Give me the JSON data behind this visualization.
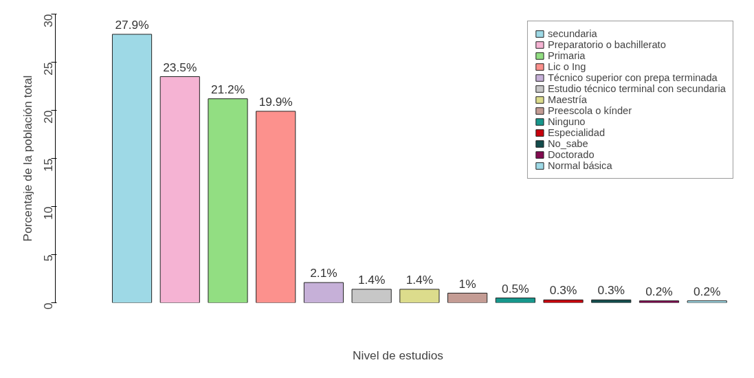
{
  "chart_data": {
    "type": "bar",
    "xlabel": "Nivel de estudios",
    "ylabel": "Porcentaje de la población total",
    "categories": [
      null,
      null,
      null,
      null,
      null,
      null,
      null,
      null,
      null,
      null,
      null,
      null,
      null
    ],
    "series": [
      {
        "name": "secundaria",
        "color": "#9ed9e6",
        "values": [
          27.9,
          null,
          null,
          null,
          null,
          null,
          null,
          null,
          null,
          null,
          null,
          null,
          null
        ],
        "value_labels": [
          "27.9%",
          null,
          null,
          null,
          null,
          null,
          null,
          null,
          null,
          null,
          null,
          null,
          null
        ]
      },
      {
        "name": "Preparatorio o bachillerato",
        "color": "#f5b3d3",
        "values": [
          null,
          23.5,
          null,
          null,
          null,
          null,
          null,
          null,
          null,
          null,
          null,
          null,
          null
        ],
        "value_labels": [
          null,
          "23.5%",
          null,
          null,
          null,
          null,
          null,
          null,
          null,
          null,
          null,
          null,
          null
        ]
      },
      {
        "name": "Primaria",
        "color": "#92de82",
        "values": [
          null,
          null,
          21.2,
          null,
          null,
          null,
          null,
          null,
          null,
          null,
          null,
          null,
          null
        ],
        "value_labels": [
          null,
          null,
          "21.2%",
          null,
          null,
          null,
          null,
          null,
          null,
          null,
          null,
          null,
          null
        ]
      },
      {
        "name": "Lic o Ing",
        "color": "#fc918d",
        "values": [
          null,
          null,
          null,
          19.9,
          null,
          null,
          null,
          null,
          null,
          null,
          null,
          null,
          null
        ],
        "value_labels": [
          null,
          null,
          null,
          "19.9%",
          null,
          null,
          null,
          null,
          null,
          null,
          null,
          null,
          null
        ]
      },
      {
        "name": "Técnico superior con prepa terminada",
        "color": "#c6b0d8",
        "values": [
          null,
          null,
          null,
          null,
          2.1,
          null,
          null,
          null,
          null,
          null,
          null,
          null,
          null
        ],
        "value_labels": [
          null,
          null,
          null,
          null,
          "2.1%",
          null,
          null,
          null,
          null,
          null,
          null,
          null,
          null
        ]
      },
      {
        "name": "Estudio técnico terminal con secundaria",
        "color": "#c7c7c7",
        "values": [
          null,
          null,
          null,
          null,
          null,
          1.4,
          null,
          null,
          null,
          null,
          null,
          null,
          null
        ],
        "value_labels": [
          null,
          null,
          null,
          null,
          null,
          "1.4%",
          null,
          null,
          null,
          null,
          null,
          null,
          null
        ]
      },
      {
        "name": "Maestría",
        "color": "#dcdc8c",
        "values": [
          null,
          null,
          null,
          null,
          null,
          null,
          1.4,
          null,
          null,
          null,
          null,
          null,
          null
        ],
        "value_labels": [
          null,
          null,
          null,
          null,
          null,
          null,
          "1.4%",
          null,
          null,
          null,
          null,
          null,
          null
        ]
      },
      {
        "name": "Preescola o kínder",
        "color": "#c49c94",
        "values": [
          null,
          null,
          null,
          null,
          null,
          null,
          null,
          1,
          null,
          null,
          null,
          null,
          null
        ],
        "value_labels": [
          null,
          null,
          null,
          null,
          null,
          null,
          null,
          "1%",
          null,
          null,
          null,
          null,
          null
        ]
      },
      {
        "name": "Ninguno",
        "color": "#17978c",
        "values": [
          null,
          null,
          null,
          null,
          null,
          null,
          null,
          null,
          0.5,
          null,
          null,
          null,
          null
        ],
        "value_labels": [
          null,
          null,
          null,
          null,
          null,
          null,
          null,
          null,
          "0.5%",
          null,
          null,
          null,
          null
        ]
      },
      {
        "name": "Especialidad",
        "color": "#c8000c",
        "values": [
          null,
          null,
          null,
          null,
          null,
          null,
          null,
          null,
          null,
          0.3,
          null,
          null,
          null
        ],
        "value_labels": [
          null,
          null,
          null,
          null,
          null,
          null,
          null,
          null,
          null,
          "0.3%",
          null,
          null,
          null
        ]
      },
      {
        "name": "No_sabe",
        "color": "#124c4c",
        "values": [
          null,
          null,
          null,
          null,
          null,
          null,
          null,
          null,
          null,
          null,
          0.3,
          null,
          null
        ],
        "value_labels": [
          null,
          null,
          null,
          null,
          null,
          null,
          null,
          null,
          null,
          null,
          "0.3%",
          null,
          null
        ]
      },
      {
        "name": "Doctorado",
        "color": "#820a50",
        "values": [
          null,
          null,
          null,
          null,
          null,
          null,
          null,
          null,
          null,
          null,
          null,
          0.2,
          null
        ],
        "value_labels": [
          null,
          null,
          null,
          null,
          null,
          null,
          null,
          null,
          null,
          null,
          null,
          "0.2%",
          null
        ]
      },
      {
        "name": "Normal básica",
        "color": "#9ed9e6",
        "values": [
          null,
          null,
          null,
          null,
          null,
          null,
          null,
          null,
          null,
          null,
          null,
          null,
          0.2
        ],
        "value_labels": [
          null,
          null,
          null,
          null,
          null,
          null,
          null,
          null,
          null,
          null,
          null,
          null,
          "0.2%"
        ]
      }
    ],
    "ylim": [
      0,
      30
    ],
    "yticks": [
      0,
      5,
      10,
      15,
      20,
      25,
      30
    ],
    "tick_labels": "y",
    "stacked": true,
    "legend": "top right",
    "grid": false
  }
}
